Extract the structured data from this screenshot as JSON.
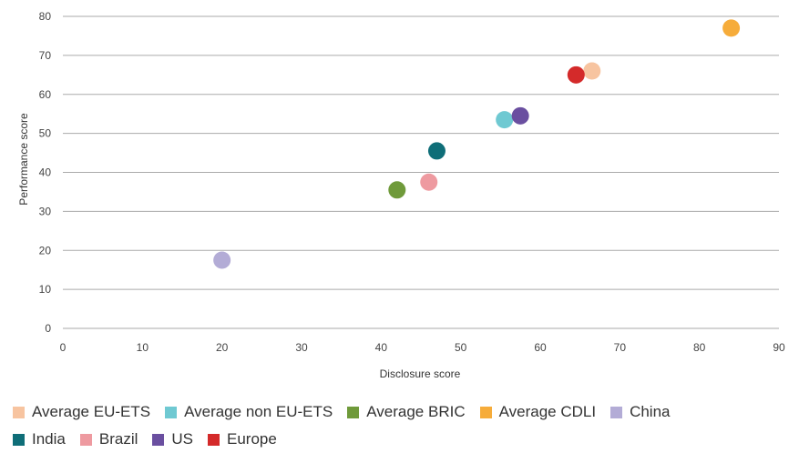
{
  "chart_data": {
    "type": "scatter",
    "xlabel": "Disclosure score",
    "ylabel": "Performance score",
    "xlim": [
      0,
      90
    ],
    "ylim": [
      0,
      80
    ],
    "x_ticks": [
      "0",
      "10",
      "20",
      "30",
      "40",
      "50",
      "60",
      "70",
      "80",
      "90"
    ],
    "y_ticks": [
      "0",
      "10",
      "20",
      "30",
      "40",
      "50",
      "60",
      "70",
      "80"
    ],
    "grid": "horizontal",
    "legend_position": "bottom",
    "series": [
      {
        "name": "Average EU-ETS",
        "color": "#f7c4a0",
        "x": 66.5,
        "y": 66
      },
      {
        "name": "Average non EU-ETS",
        "color": "#6fc9d2",
        "x": 55.5,
        "y": 53.5
      },
      {
        "name": "Average BRIC",
        "color": "#6f9a3a",
        "x": 42,
        "y": 35.5
      },
      {
        "name": "Average CDLI",
        "color": "#f6ac3a",
        "x": 84,
        "y": 77
      },
      {
        "name": "China",
        "color": "#b3acd6",
        "x": 20,
        "y": 17.5
      },
      {
        "name": "India",
        "color": "#0f6e78",
        "x": 47,
        "y": 45.5
      },
      {
        "name": "Brazil",
        "color": "#ee9aa0",
        "x": 46,
        "y": 37.5
      },
      {
        "name": "US",
        "color": "#6a4fa0",
        "x": 57.5,
        "y": 54.5
      },
      {
        "name": "Europe",
        "color": "#d42a2a",
        "x": 64.5,
        "y": 65
      }
    ]
  }
}
